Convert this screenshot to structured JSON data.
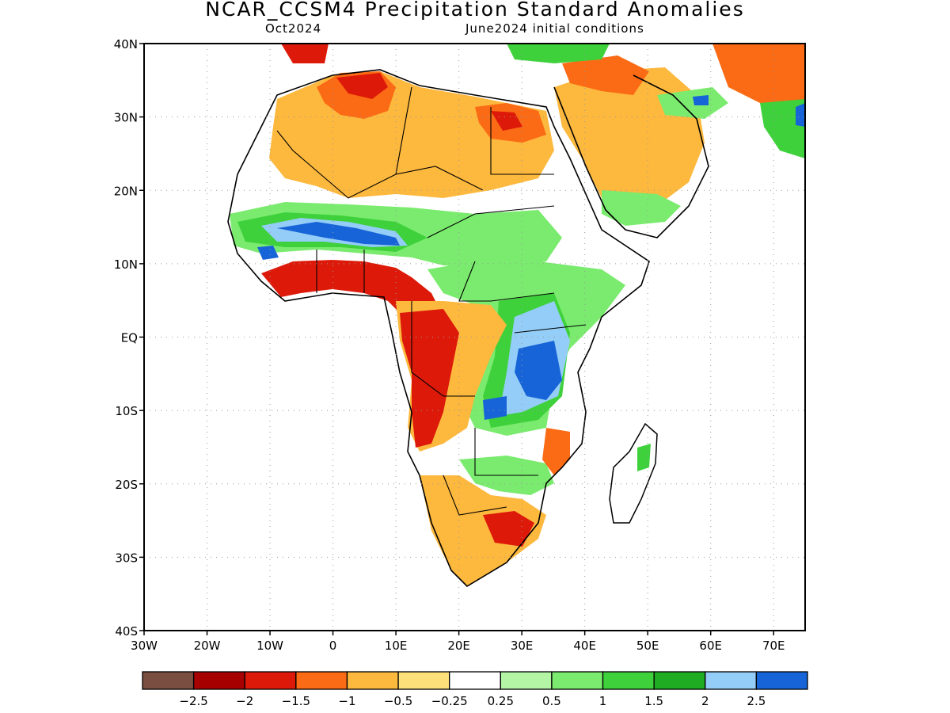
{
  "title": "NCAR_CCSM4 Precipitation Standard Anomalies",
  "subtitle_left": "Oct2024",
  "subtitle_right": "June2024 initial conditions",
  "map": {
    "lon_range": [
      -30,
      75
    ],
    "lat_range": [
      -40,
      40
    ],
    "lat_labels": [
      {
        "value": 40,
        "text": "40N"
      },
      {
        "value": 30,
        "text": "30N"
      },
      {
        "value": 20,
        "text": "20N"
      },
      {
        "value": 10,
        "text": "10N"
      },
      {
        "value": 0,
        "text": "EQ"
      },
      {
        "value": -10,
        "text": "10S"
      },
      {
        "value": -20,
        "text": "20S"
      },
      {
        "value": -30,
        "text": "30S"
      },
      {
        "value": -40,
        "text": "40S"
      }
    ],
    "lon_labels": [
      {
        "value": -30,
        "text": "30W"
      },
      {
        "value": -20,
        "text": "20W"
      },
      {
        "value": -10,
        "text": "10W"
      },
      {
        "value": 0,
        "text": "0"
      },
      {
        "value": 10,
        "text": "10E"
      },
      {
        "value": 20,
        "text": "20E"
      },
      {
        "value": 30,
        "text": "30E"
      },
      {
        "value": 40,
        "text": "40E"
      },
      {
        "value": 50,
        "text": "50E"
      },
      {
        "value": 60,
        "text": "60E"
      },
      {
        "value": 70,
        "text": "70E"
      }
    ]
  },
  "colorbar": {
    "colors": [
      "#7a4f42",
      "#a60000",
      "#dd1a0a",
      "#fb6a14",
      "#fdb83e",
      "#fde07a",
      "#ffffff",
      "#b4f5a5",
      "#7aeb6e",
      "#3fd13c",
      "#1fab22",
      "#94cdf7",
      "#1764d8"
    ],
    "labels": [
      "−2.5",
      "−2",
      "−1.5",
      "−1",
      "−0.5",
      "−0.25",
      "0.25",
      "0.5",
      "1",
      "1.5",
      "2",
      "2.5"
    ]
  }
}
